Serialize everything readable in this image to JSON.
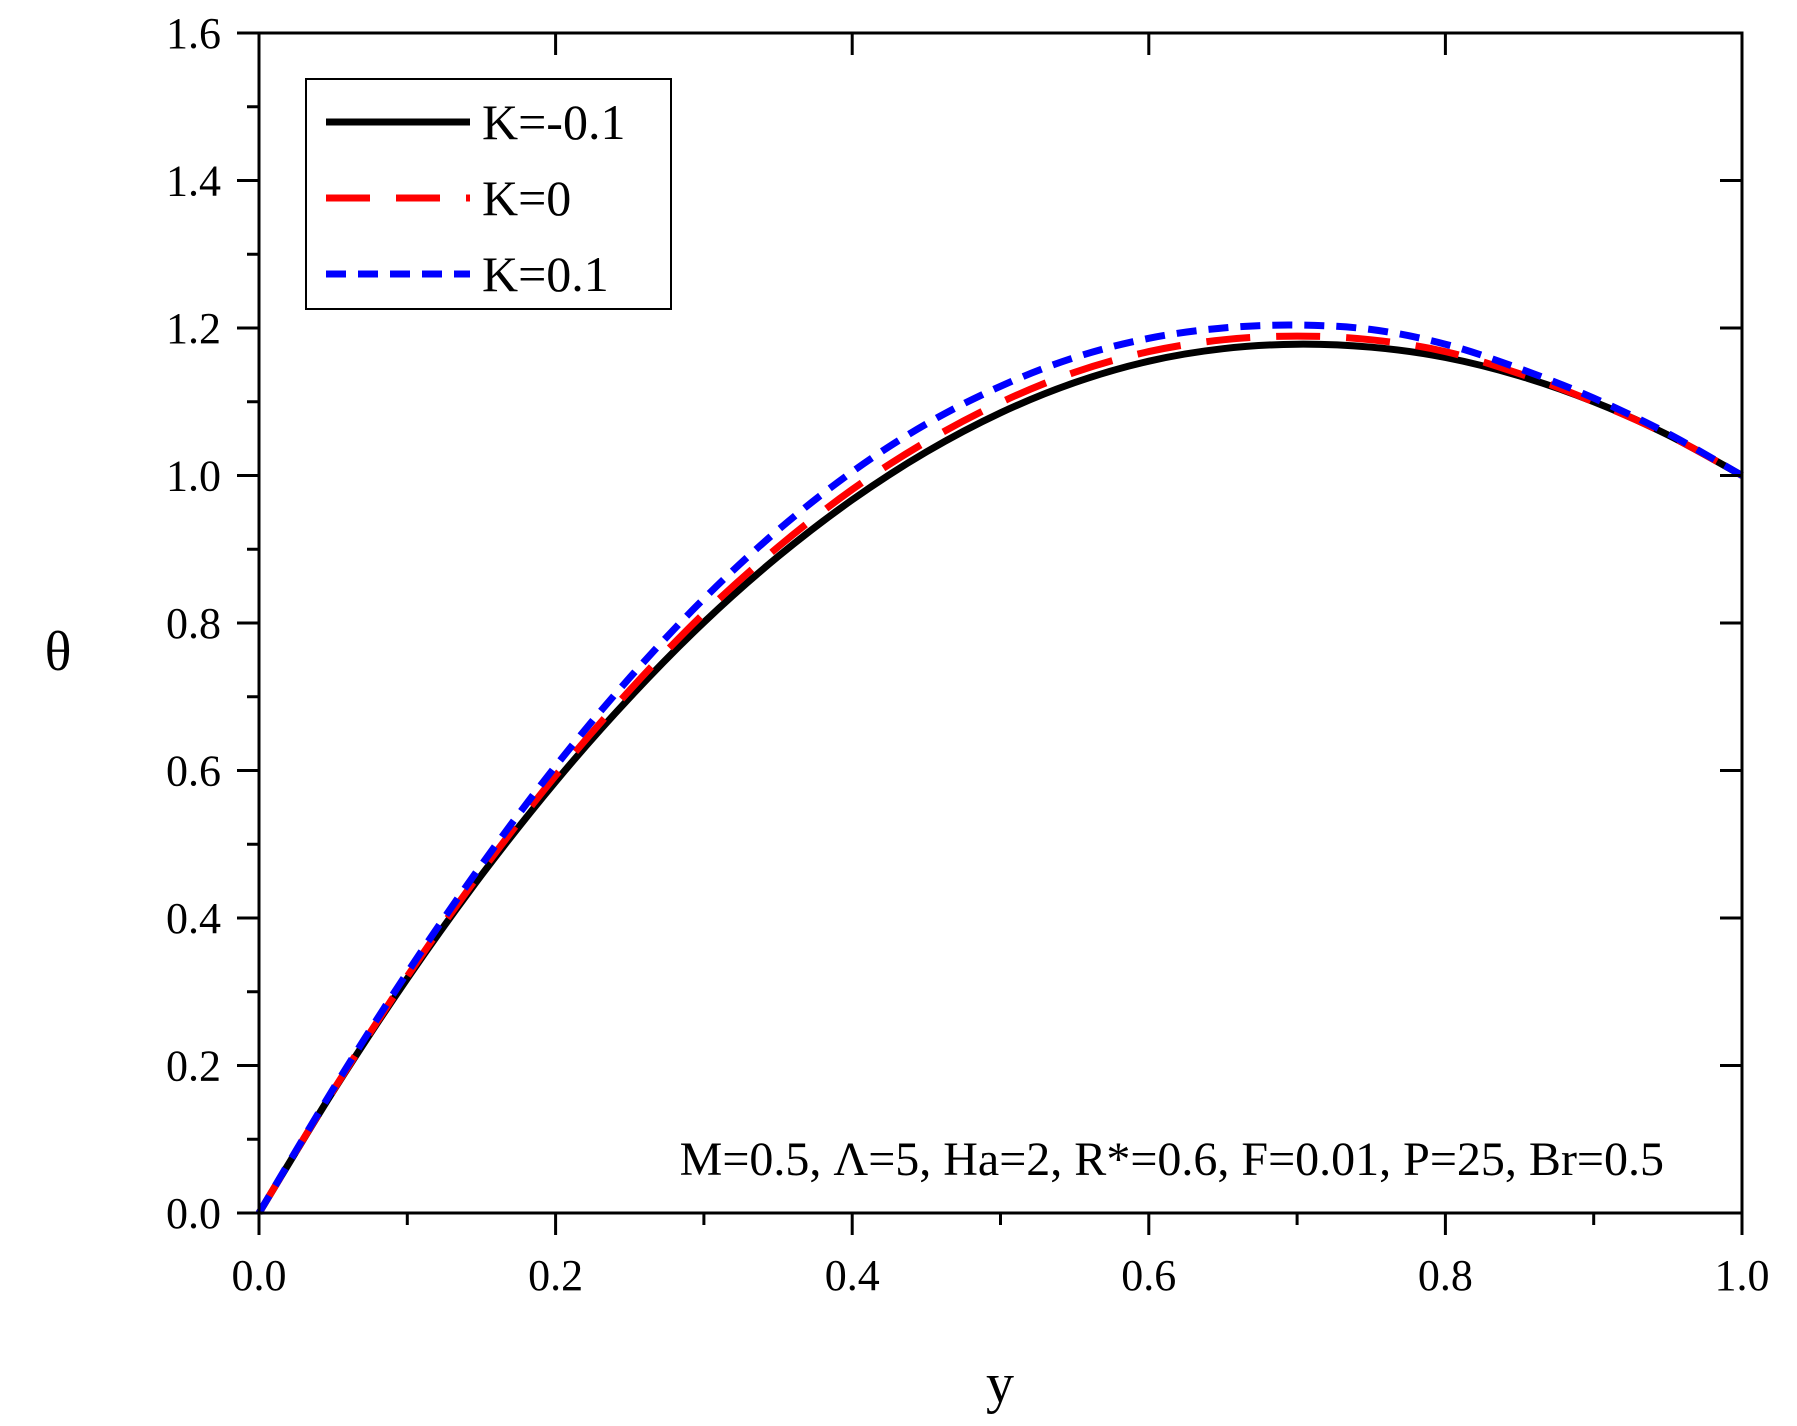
{
  "chart_data": {
    "type": "line",
    "xlabel": "y",
    "ylabel": "θ",
    "xlim": [
      0,
      1
    ],
    "ylim": [
      0,
      1.6
    ],
    "xticks": [
      "0.0",
      "0.2",
      "0.4",
      "0.6",
      "0.8",
      "1.0"
    ],
    "yticks": [
      "0.0",
      "0.2",
      "0.4",
      "0.6",
      "0.8",
      "1.0",
      "1.2",
      "1.4",
      "1.6"
    ],
    "grid": false,
    "legend_position": "top-left",
    "annotation": "M=0.5, Λ=5, Ha=2, R*=0.6, F=0.01, P=25, Br=0.5",
    "x": [
      0,
      0.05,
      0.1,
      0.15,
      0.2,
      0.25,
      0.3,
      0.35,
      0.4,
      0.45,
      0.5,
      0.55,
      0.6,
      0.65,
      0.7,
      0.75,
      0.8,
      0.85,
      0.9,
      0.95,
      1.0
    ],
    "series": [
      {
        "name": "K=-0.1",
        "color": "#000000",
        "style": "solid",
        "values": [
          0.0,
          0.165,
          0.318,
          0.458,
          0.585,
          0.699,
          0.801,
          0.89,
          0.967,
          1.032,
          1.085,
          1.126,
          1.155,
          1.172,
          1.178,
          1.174,
          1.16,
          1.135,
          1.1,
          1.055,
          1.0
        ]
      },
      {
        "name": "K=0",
        "color": "#ff0000",
        "style": "dashed",
        "values": [
          0.0,
          0.166,
          0.321,
          0.463,
          0.593,
          0.709,
          0.813,
          0.903,
          0.981,
          1.046,
          1.099,
          1.14,
          1.168,
          1.184,
          1.189,
          1.184,
          1.168,
          1.138,
          1.1,
          1.055,
          1.0
        ]
      },
      {
        "name": "K=0.1",
        "color": "#0000ff",
        "style": "dotted",
        "values": [
          0.0,
          0.168,
          0.326,
          0.472,
          0.606,
          0.726,
          0.833,
          0.926,
          1.005,
          1.07,
          1.121,
          1.16,
          1.186,
          1.2,
          1.204,
          1.198,
          1.178,
          1.145,
          1.105,
          1.057,
          1.0
        ]
      }
    ]
  }
}
